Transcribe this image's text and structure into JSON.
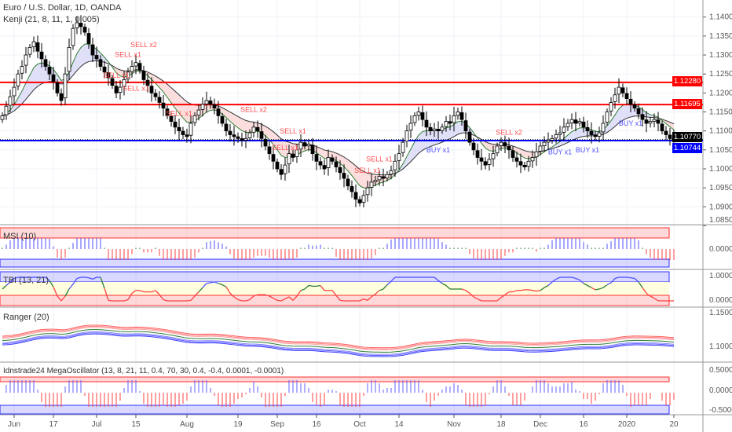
{
  "header": {
    "title": "Euro / U.S. Dollar, 1D, OANDA",
    "indicator": "Kenji (21, 8, 11, 1, 0.005)"
  },
  "panes": {
    "msi": "MSI (10)",
    "tbi": "TBI (13, 21)",
    "ranger": "Ranger (20)",
    "mega": "Idnstrade24 MegaOscillator (13, 8, 21, 11, 0.4, 70, 30, 0.4, -0.4, 0.0001, -0.0001)"
  },
  "price_tags": {
    "resistance_1": "1.12280",
    "resistance_2": "1.11695",
    "last_price": "1.10770",
    "support": "1.10744"
  },
  "colors": {
    "red": "#ff0000",
    "blue": "#0000ff",
    "up": "#ffffff",
    "down": "#000000"
  },
  "chart_data": {
    "type": "candlestick",
    "symbol": "EURUSD",
    "timeframe": "1D",
    "ylim": [
      1.0855,
      1.1445
    ],
    "y_ticks": [
      "1.14000",
      "1.13500",
      "1.13000",
      "1.12500",
      "1.12000",
      "1.11500",
      "1.11000",
      "1.10500",
      "1.10000",
      "1.09500",
      "1.09000",
      "1.08500"
    ],
    "x_ticks": [
      {
        "label": "Jun",
        "bar": 3
      },
      {
        "label": "17",
        "bar": 13
      },
      {
        "label": "Jul",
        "bar": 24
      },
      {
        "label": "15",
        "bar": 34
      },
      {
        "label": "Aug",
        "bar": 47
      },
      {
        "label": "19",
        "bar": 60
      },
      {
        "label": "Sep",
        "bar": 70
      },
      {
        "label": "16",
        "bar": 80
      },
      {
        "label": "Oct",
        "bar": 91
      },
      {
        "label": "14",
        "bar": 101
      },
      {
        "label": "Nov",
        "bar": 115
      },
      {
        "label": "18",
        "bar": 127
      },
      {
        "label": "Dec",
        "bar": 137
      },
      {
        "label": "16",
        "bar": 148
      },
      {
        "label": "2020",
        "bar": 159
      },
      {
        "label": "20",
        "bar": 171
      }
    ],
    "closes": [
      1.114,
      1.1165,
      1.119,
      1.1215,
      1.125,
      1.127,
      1.13,
      1.132,
      1.1335,
      1.131,
      1.129,
      1.127,
      1.125,
      1.123,
      1.12,
      1.118,
      1.125,
      1.132,
      1.137,
      1.1385,
      1.1375,
      1.136,
      1.133,
      1.13,
      1.129,
      1.127,
      1.1255,
      1.124,
      1.122,
      1.12,
      1.1215,
      1.1235,
      1.1255,
      1.127,
      1.128,
      1.126,
      1.1235,
      1.122,
      1.12,
      1.119,
      1.1175,
      1.116,
      1.114,
      1.1125,
      1.111,
      1.11,
      1.109,
      1.1085,
      1.112,
      1.114,
      1.1155,
      1.117,
      1.118,
      1.117,
      1.116,
      1.114,
      1.112,
      1.11,
      1.109,
      1.1085,
      1.108,
      1.1075,
      1.108,
      1.1095,
      1.111,
      1.11,
      1.108,
      1.106,
      1.104,
      1.102,
      1.1,
      1.0985,
      1.101,
      1.104,
      1.103,
      1.105,
      1.107,
      1.106,
      1.1065,
      1.104,
      1.102,
      1.101,
      1.1,
      1.103,
      1.102,
      1.1005,
      1.099,
      1.0975,
      1.0955,
      1.094,
      1.092,
      1.091,
      1.093,
      1.095,
      1.0965,
      1.097,
      1.098,
      1.0975,
      1.0985,
      1.0995,
      1.102,
      1.104,
      1.107,
      1.11,
      1.112,
      1.114,
      1.115,
      1.113,
      1.111,
      1.11,
      1.1105,
      1.11,
      1.111,
      1.1125,
      1.112,
      1.114,
      1.115,
      1.113,
      1.11,
      1.107,
      1.105,
      1.103,
      1.102,
      1.101,
      1.1025,
      1.104,
      1.106,
      1.107,
      1.106,
      1.105,
      1.103,
      1.102,
      1.101,
      1.1005,
      1.102,
      1.103,
      1.1045,
      1.106,
      1.107,
      1.1075,
      1.108,
      1.109,
      1.1095,
      1.111,
      1.112,
      1.113,
      1.112,
      1.1125,
      1.111,
      1.11,
      1.109,
      1.1085,
      1.1095,
      1.112,
      1.115,
      1.1175,
      1.1195,
      1.1215,
      1.12,
      1.1185,
      1.117,
      1.116,
      1.1145,
      1.113,
      1.112,
      1.1125,
      1.113,
      1.112,
      1.11,
      1.109,
      1.108,
      1.1077
    ],
    "horizontal_lines": [
      {
        "price": 1.1228,
        "color": "#ff0000"
      },
      {
        "price": 1.11695,
        "color": "#ff0000"
      },
      {
        "price": 1.10744,
        "color": "#0000ff"
      }
    ],
    "signals": [
      {
        "label": "SELL x1",
        "bar": 29,
        "type": "sell"
      },
      {
        "label": "SELL x1",
        "bar": 32,
        "type": "sell"
      },
      {
        "label": "SELL x2",
        "bar": 36,
        "type": "sell"
      },
      {
        "label": "SELL x1",
        "bar": 34,
        "type": "sell",
        "row": 1
      },
      {
        "label": "SELL x1",
        "bar": 45,
        "type": "sell"
      },
      {
        "label": "SELL x2",
        "bar": 64,
        "type": "sell"
      },
      {
        "label": "SELL x1",
        "bar": 72,
        "type": "sell"
      },
      {
        "label": "SELL x1",
        "bar": 74,
        "type": "sell",
        "row": 1
      },
      {
        "label": "SELL x1",
        "bar": 93,
        "type": "sell"
      },
      {
        "label": "SELL x1",
        "bar": 96,
        "type": "sell"
      },
      {
        "label": "SELL x2",
        "bar": 129,
        "type": "sell"
      },
      {
        "label": "BUY x1",
        "bar": 111,
        "type": "buy"
      },
      {
        "label": "BUY x1",
        "bar": 142,
        "type": "buy"
      },
      {
        "label": "BUY x1",
        "bar": 149,
        "type": "buy"
      },
      {
        "label": "BUY x1",
        "bar": 160,
        "type": "buy"
      }
    ],
    "sub_axes": {
      "msi": [
        "0.00000"
      ],
      "tbi": [
        "1.00000",
        "0.00000"
      ],
      "ranger": [
        "1.15000",
        "1.10000"
      ],
      "mega": [
        "0.50000",
        "0.00000",
        "-0.50000"
      ]
    }
  }
}
